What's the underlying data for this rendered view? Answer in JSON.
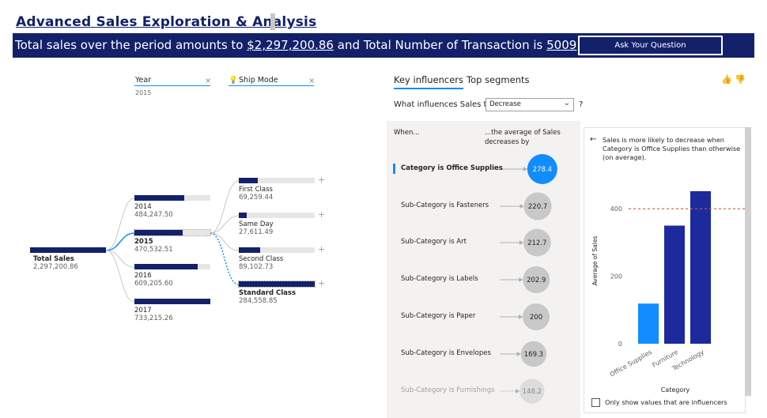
{
  "header": {
    "title": "Advanced Sales Exploration & Analysis",
    "summary_prefix": "Total sales over the period amounts to ",
    "total_sales": "$2,297,200.86",
    "summary_mid": " and Total Number of Transaction is ",
    "transactions": "5009",
    "ask_button": "Ask Your Question"
  },
  "colors": {
    "brand": "#13216b",
    "accent": "#118dff",
    "highlight": "#e0543c"
  },
  "decomp": {
    "slicer_year": {
      "label": "Year",
      "value": "2015"
    },
    "slicer_ship": {
      "label": "Ship Mode",
      "icon": "lightbulb-icon"
    },
    "root": {
      "label": "Total Sales",
      "value": "2,297,200.86"
    },
    "years": [
      {
        "label": "2014",
        "value": "484,247.50",
        "fill": 0.66,
        "selected": false
      },
      {
        "label": "2015",
        "value": "470,532.51",
        "fill": 0.64,
        "selected": true
      },
      {
        "label": "2016",
        "value": "609,205.60",
        "fill": 0.83,
        "selected": false
      },
      {
        "label": "2017",
        "value": "733,215.26",
        "fill": 1.0,
        "selected": false
      }
    ],
    "ship_modes": [
      {
        "label": "First Class",
        "value": "69,259.44",
        "fill": 0.25,
        "selected": false
      },
      {
        "label": "Same Day",
        "value": "27,611.49",
        "fill": 0.1,
        "selected": false
      },
      {
        "label": "Second Class",
        "value": "89,102.73",
        "fill": 0.28,
        "selected": false
      },
      {
        "label": "Standard Class",
        "value": "284,558.85",
        "fill": 1.0,
        "selected": true
      }
    ]
  },
  "influencers": {
    "tabs": [
      "Key influencers",
      "Top segments"
    ],
    "question": "What influences Sales to",
    "dropdown_value": "Decrease",
    "qmark": "?",
    "col_when": "When...",
    "col_avg": "...the average of Sales decreases by",
    "rows": [
      {
        "label": "Category is Office Supplies",
        "value": "278.4",
        "selected": true,
        "faded": false
      },
      {
        "label": "Sub-Category is Fasteners",
        "value": "220.7",
        "selected": false,
        "faded": false
      },
      {
        "label": "Sub-Category is Art",
        "value": "212.7",
        "selected": false,
        "faded": false
      },
      {
        "label": "Sub-Category is Labels",
        "value": "202.9",
        "selected": false,
        "faded": false
      },
      {
        "label": "Sub-Category is Paper",
        "value": "200",
        "selected": false,
        "faded": false
      },
      {
        "label": "Sub-Category is Envelopes",
        "value": "169.3",
        "selected": false,
        "faded": false
      },
      {
        "label": "Sub-Category is Furnishings",
        "value": "148.2",
        "selected": false,
        "faded": true
      }
    ],
    "detail_text": "Sales is more likely to decrease when Category is Office Supplies than otherwise (on average).",
    "checkbox_label": "Only show values that are influencers"
  },
  "chart_data": {
    "type": "bar",
    "title": "",
    "xlabel": "Category",
    "ylabel": "Average of Sales",
    "categories": [
      "Office Supplies",
      "Furniture",
      "Technology"
    ],
    "values": [
      119,
      350,
      452
    ],
    "reference_line": 400,
    "yticks": [
      "0",
      "200",
      "400"
    ],
    "ylim": [
      0,
      480
    ],
    "colors": [
      "#118dff",
      "#1c2a9e",
      "#1c2a9e"
    ]
  }
}
